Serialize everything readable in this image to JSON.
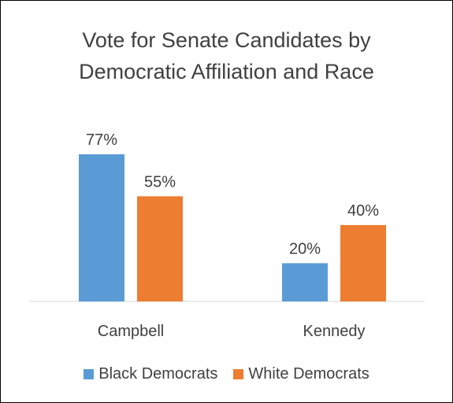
{
  "chart_data": {
    "type": "bar",
    "title_lines": [
      "Vote for Senate Candidates by",
      "Democratic Affiliation and Race"
    ],
    "categories": [
      "Campbell",
      "Kennedy"
    ],
    "series": [
      {
        "name": "Black Democrats",
        "values": [
          77,
          20
        ],
        "labels": [
          "77%",
          "20%"
        ],
        "color": "#5B9BD5"
      },
      {
        "name": "White Democrats",
        "values": [
          55,
          40
        ],
        "labels": [
          "55%",
          "40%"
        ],
        "color": "#ED7D31"
      }
    ],
    "xlabel": "",
    "ylabel": "",
    "ylim": [
      0,
      100
    ],
    "legend_position": "bottom",
    "grid": false,
    "axis_color": "#D9D9D9",
    "text_color": "#404040"
  }
}
